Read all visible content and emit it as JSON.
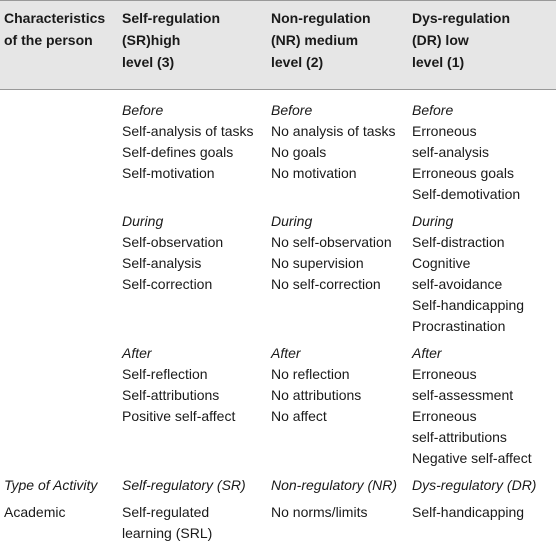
{
  "table": {
    "header": [
      [
        "Characteristics",
        "of the person"
      ],
      [
        "Self-regulation",
        "(SR)high",
        "level (3)"
      ],
      [
        "Non-regulation",
        "(NR) medium",
        "level (2)"
      ],
      [
        "Dys-regulation",
        "(DR) low",
        "level (1)"
      ]
    ],
    "phases": [
      [
        [
          "Before",
          "Self-analysis of tasks",
          "Self-defines goals",
          "Self-motivation"
        ],
        [
          "Before",
          "No analysis of tasks",
          "No goals",
          "No motivation"
        ],
        [
          "Before",
          "Erroneous",
          "self-analysis",
          "Erroneous goals",
          "Self-demotivation"
        ]
      ],
      [
        [
          "During",
          "Self-observation",
          "Self-analysis",
          "Self-correction"
        ],
        [
          "During",
          "No self-observation",
          "No supervision",
          "No self-correction"
        ],
        [
          "During",
          "Self-distraction",
          "Cognitive",
          "self-avoidance",
          "Self-handicapping",
          "Procrastination"
        ]
      ],
      [
        [
          "After",
          "Self-reflection",
          "Self-attributions",
          "Positive self-affect"
        ],
        [
          "After",
          "No reflection",
          "No attributions",
          "No affect"
        ],
        [
          "After",
          "Erroneous",
          "self-assessment",
          "Erroneous",
          "self-attributions",
          "Negative self-affect"
        ]
      ]
    ],
    "activity_row": [
      "Type of Activity",
      "Self-regulatory (SR)",
      "Non-regulatory (NR)",
      "Dys-regulatory (DR)"
    ],
    "academic_row": [
      [
        "Academic"
      ],
      [
        "Self-regulated",
        "learning (SRL)"
      ],
      [
        "No norms/limits"
      ],
      [
        "Self-handicapping"
      ]
    ]
  }
}
